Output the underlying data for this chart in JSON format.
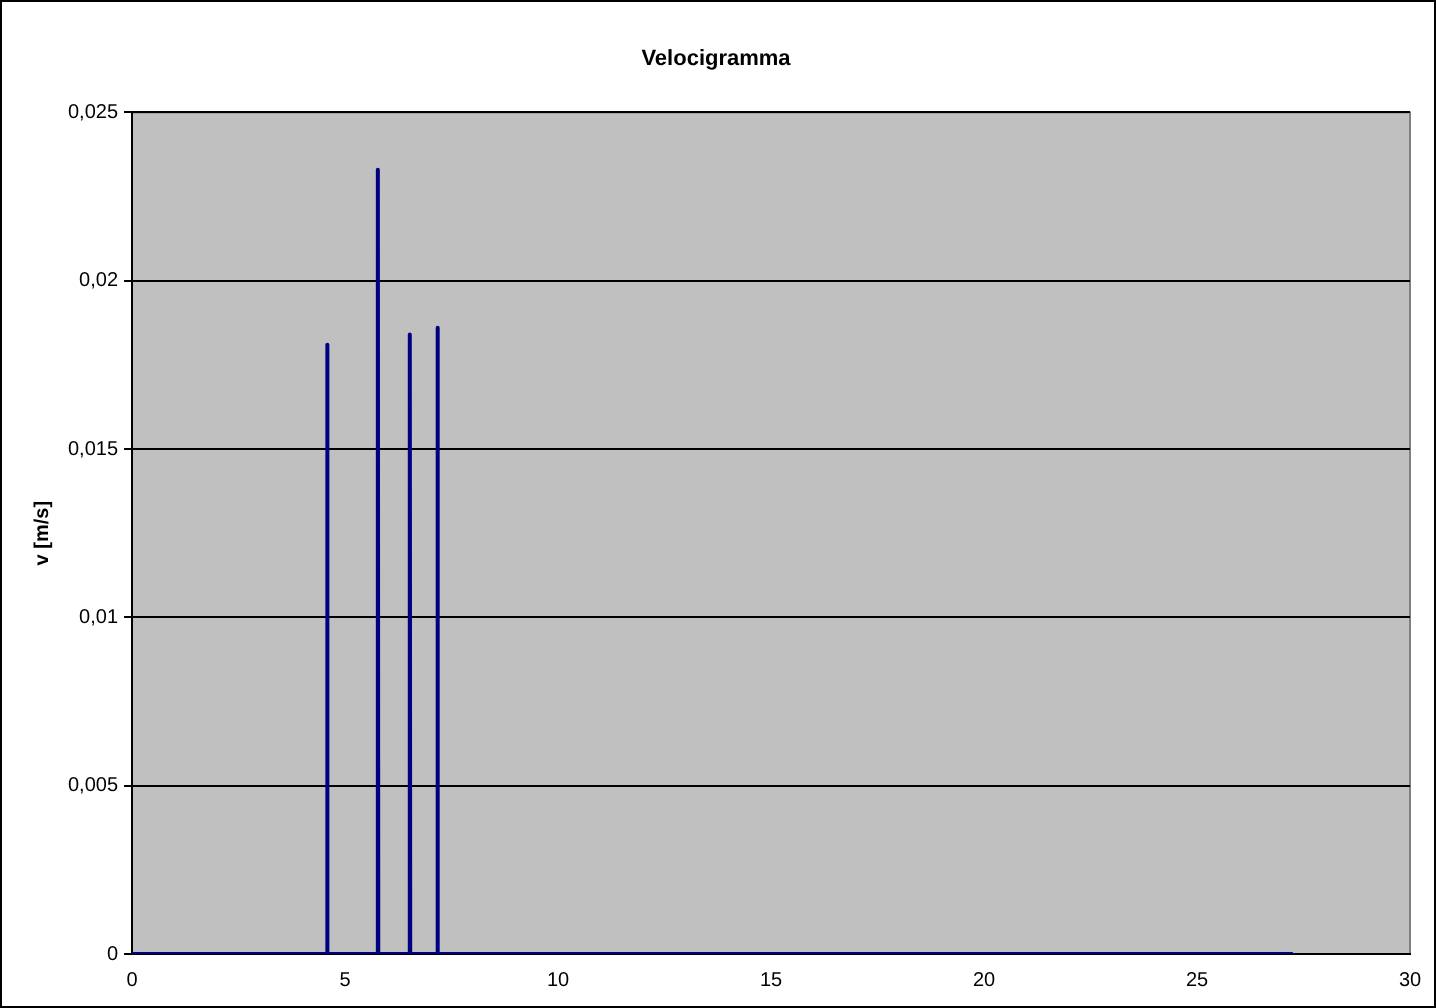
{
  "chart_data": {
    "type": "line",
    "title": "Velocigramma",
    "ylabel": "v [m/s]",
    "x": [
      0,
      4.57,
      4.58,
      4.59,
      5.76,
      5.77,
      5.78,
      6.51,
      6.52,
      6.53,
      7.16,
      7.17,
      7.18,
      27.25
    ],
    "series": [
      {
        "color": "#000080",
        "values": [
          0,
          0,
          0.0181,
          0,
          0,
          0.0233,
          0,
          0,
          0.0184,
          0,
          0,
          0.0186,
          0,
          0
        ]
      }
    ],
    "xlim": [
      0,
      30
    ],
    "xticks": [
      0,
      5,
      10,
      15,
      20,
      25,
      30
    ],
    "ylim": [
      0,
      0.025
    ],
    "yticks": [
      0,
      {
        "value": 0.005,
        "label": "0,005"
      },
      {
        "value": 0.01,
        "label": "0,01"
      },
      {
        "value": 0.015,
        "label": "0,015"
      },
      {
        "value": 0.02,
        "label": "0,02"
      },
      {
        "value": 0.025,
        "label": "0,025"
      }
    ],
    "grid": "y",
    "legend": false,
    "marker": "none",
    "line_style": "solid"
  }
}
